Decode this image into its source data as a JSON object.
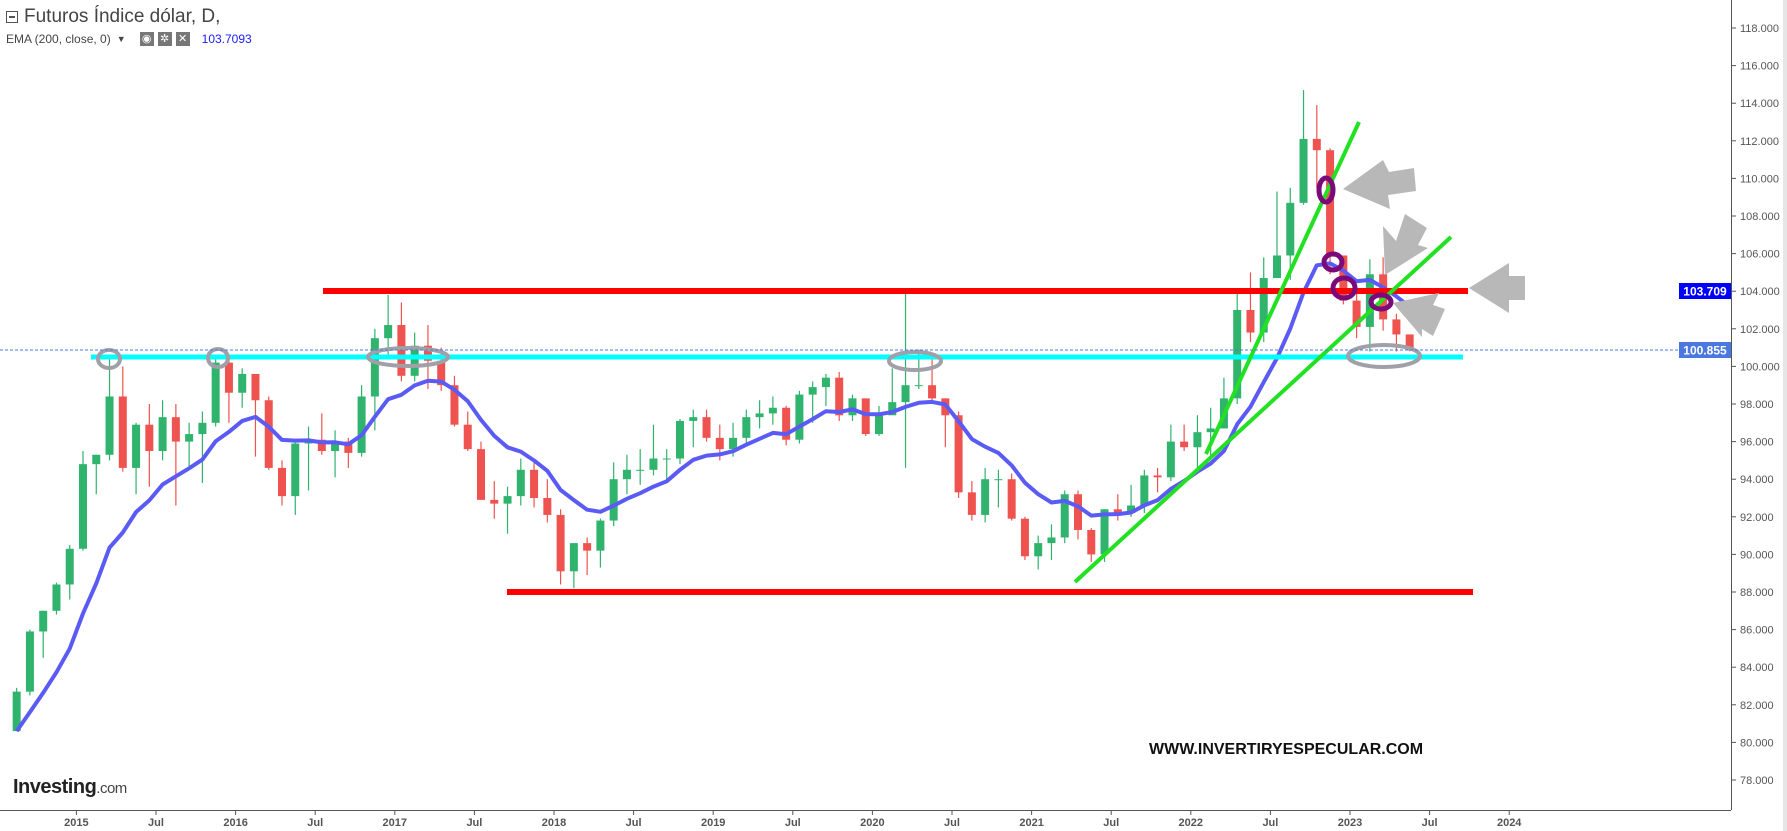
{
  "header": {
    "title": "Futuros Índice dólar, D,",
    "indicator_label": "EMA (200, close, 0)",
    "indicator_value": "103.7093",
    "icons": [
      "eye-icon",
      "gear-icon",
      "close-icon"
    ]
  },
  "watermark": "WWW.INVERTIRYESPECULAR.COM",
  "logo": {
    "main": "Investing",
    "suffix": ".com"
  },
  "colors": {
    "up": "#2fb36d",
    "down": "#ef5350",
    "ema": "#5a5af5",
    "resistance": "#ff0000",
    "support": "#00ffff",
    "trend": "#22e022",
    "marker_gray": "#a0a0a8",
    "marker_purple": "#7a0a7a",
    "last_price_badge": "#4a78e0",
    "ema_badge": "#0000ff"
  },
  "chart_data": {
    "type": "candlestick",
    "interval_shown": "D",
    "ylim": [
      77,
      119
    ],
    "yticks": [
      "78.000",
      "80.000",
      "82.000",
      "84.000",
      "86.000",
      "88.000",
      "90.000",
      "92.000",
      "94.000",
      "96.000",
      "98.000",
      "100.000",
      "102.000",
      "104.000",
      "106.000",
      "108.000",
      "110.000",
      "112.000",
      "114.000",
      "116.000",
      "118.000"
    ],
    "xticks": [
      {
        "label": "2015",
        "date": "2015-01"
      },
      {
        "label": "Jul",
        "date": "2015-07"
      },
      {
        "label": "2016",
        "date": "2016-01"
      },
      {
        "label": "Jul",
        "date": "2016-07"
      },
      {
        "label": "2017",
        "date": "2017-01"
      },
      {
        "label": "Jul",
        "date": "2017-07"
      },
      {
        "label": "2018",
        "date": "2018-01"
      },
      {
        "label": "Jul",
        "date": "2018-07"
      },
      {
        "label": "2019",
        "date": "2019-01"
      },
      {
        "label": "Jul",
        "date": "2019-07"
      },
      {
        "label": "2020",
        "date": "2020-01"
      },
      {
        "label": "Jul",
        "date": "2020-07"
      },
      {
        "label": "2021",
        "date": "2021-01"
      },
      {
        "label": "Jul",
        "date": "2021-07"
      },
      {
        "label": "2022",
        "date": "2022-01"
      },
      {
        "label": "Jul",
        "date": "2022-07"
      },
      {
        "label": "2023",
        "date": "2023-01"
      },
      {
        "label": "Jul",
        "date": "2023-07"
      },
      {
        "label": "2024",
        "date": "2024-01"
      }
    ],
    "start": "2014-08",
    "start_open": 80.6,
    "ohlc_close_high_low": [
      [
        82.7,
        82.9,
        80.6
      ],
      [
        85.9,
        86.0,
        82.5
      ],
      [
        87.0,
        87.0,
        84.5
      ],
      [
        88.4,
        88.5,
        86.8
      ],
      [
        90.3,
        90.5,
        87.6
      ],
      [
        94.8,
        95.5,
        90.2
      ],
      [
        95.3,
        95.3,
        93.2
      ],
      [
        98.4,
        100.4,
        95.0
      ],
      [
        94.6,
        100.0,
        94.4
      ],
      [
        96.9,
        97.0,
        93.2
      ],
      [
        95.5,
        98.0,
        93.6
      ],
      [
        97.3,
        98.2,
        95.0
      ],
      [
        96.0,
        98.0,
        92.6
      ],
      [
        96.4,
        97.0,
        94.7
      ],
      [
        97.0,
        97.6,
        93.8
      ],
      [
        100.2,
        100.6,
        96.8
      ],
      [
        98.6,
        100.3,
        97.0
      ],
      [
        99.6,
        99.9,
        97.8
      ],
      [
        98.2,
        99.5,
        95.2
      ],
      [
        94.6,
        98.4,
        94.5
      ],
      [
        93.1,
        95.0,
        92.6
      ],
      [
        95.9,
        96.0,
        92.1
      ],
      [
        96.1,
        96.8,
        93.4
      ],
      [
        95.5,
        97.5,
        95.3
      ],
      [
        96.0,
        96.6,
        94.1
      ],
      [
        95.4,
        96.2,
        94.6
      ],
      [
        98.4,
        99.0,
        95.2
      ],
      [
        101.5,
        102.0,
        96.6
      ],
      [
        102.2,
        103.8,
        100.6
      ],
      [
        99.5,
        103.4,
        99.2
      ],
      [
        101.1,
        101.8,
        99.2
      ],
      [
        100.3,
        102.2,
        98.8
      ],
      [
        99.0,
        101.0,
        98.7
      ],
      [
        96.9,
        99.5,
        96.8
      ],
      [
        95.6,
        97.6,
        95.5
      ],
      [
        92.9,
        96.0,
        92.9
      ],
      [
        92.7,
        93.9,
        91.9
      ],
      [
        93.1,
        93.6,
        91.1
      ],
      [
        94.5,
        95.1,
        92.6
      ],
      [
        93.0,
        95.0,
        92.5
      ],
      [
        92.1,
        94.0,
        91.7
      ],
      [
        89.1,
        92.4,
        88.4
      ],
      [
        90.6,
        90.6,
        88.2
      ],
      [
        90.2,
        90.9,
        88.9
      ],
      [
        91.8,
        91.9,
        89.3
      ],
      [
        94.0,
        94.9,
        91.5
      ],
      [
        94.5,
        95.3,
        93.2
      ],
      [
        94.5,
        95.6,
        93.7
      ],
      [
        95.1,
        96.9,
        94.2
      ],
      [
        95.1,
        95.6,
        93.8
      ],
      [
        97.1,
        97.2,
        94.8
      ],
      [
        97.3,
        97.7,
        95.7
      ],
      [
        96.2,
        97.7,
        96.0
      ],
      [
        95.6,
        96.9,
        95.0
      ],
      [
        96.2,
        97.0,
        95.2
      ],
      [
        97.3,
        97.7,
        95.8
      ],
      [
        97.5,
        98.2,
        96.7
      ],
      [
        97.8,
        98.4,
        96.9
      ],
      [
        96.1,
        97.9,
        95.8
      ],
      [
        98.5,
        98.7,
        95.9
      ],
      [
        98.9,
        99.2,
        97.0
      ],
      [
        99.4,
        99.6,
        97.9
      ],
      [
        97.4,
        99.7,
        97.1
      ],
      [
        98.3,
        98.5,
        97.1
      ],
      [
        96.4,
        98.2,
        96.3
      ],
      [
        97.4,
        97.9,
        96.3
      ],
      [
        98.1,
        99.9,
        97.6
      ],
      [
        99.0,
        103.9,
        94.6
      ],
      [
        99.0,
        100.9,
        98.8
      ],
      [
        98.3,
        100.4,
        98.0
      ],
      [
        97.4,
        98.3,
        95.7
      ],
      [
        93.3,
        97.6,
        93.0
      ],
      [
        92.1,
        93.9,
        91.8
      ],
      [
        94.0,
        94.6,
        91.7
      ],
      [
        94.0,
        94.5,
        92.5
      ],
      [
        91.9,
        94.3,
        91.8
      ],
      [
        89.9,
        92.0,
        89.7
      ],
      [
        90.6,
        91.0,
        89.2
      ],
      [
        90.9,
        91.6,
        89.7
      ],
      [
        93.2,
        93.4,
        90.6
      ],
      [
        91.3,
        93.4,
        90.8
      ],
      [
        90.0,
        91.4,
        89.6
      ],
      [
        92.4,
        92.4,
        89.6
      ],
      [
        92.2,
        93.2,
        91.8
      ],
      [
        92.6,
        93.7,
        92.0
      ],
      [
        94.2,
        94.5,
        92.2
      ],
      [
        94.1,
        94.6,
        93.3
      ],
      [
        96.0,
        96.9,
        93.9
      ],
      [
        95.7,
        96.9,
        95.5
      ],
      [
        96.5,
        97.4,
        94.6
      ],
      [
        96.7,
        97.8,
        95.1
      ],
      [
        98.3,
        99.4,
        96.7
      ],
      [
        103.0,
        103.9,
        98.0
      ],
      [
        101.8,
        105.0,
        101.3
      ],
      [
        104.7,
        105.8,
        101.3
      ],
      [
        105.9,
        109.3,
        104.8
      ],
      [
        108.7,
        109.5,
        104.6
      ],
      [
        112.1,
        114.7,
        108.6
      ],
      [
        111.5,
        113.9,
        109.5
      ],
      [
        105.9,
        111.6,
        104.9
      ],
      [
        103.5,
        105.8,
        103.3
      ],
      [
        102.1,
        104.1,
        101.5
      ],
      [
        104.9,
        105.7,
        100.8
      ],
      [
        102.5,
        105.8,
        101.9
      ],
      [
        101.7,
        102.8,
        100.8
      ],
      [
        100.855,
        101.7,
        100.8
      ]
    ],
    "ema_period": 200,
    "last_price": "100.855",
    "ema_last": "103.709",
    "levels": [
      {
        "kind": "resistance",
        "price": 104.0
      },
      {
        "kind": "support",
        "price": 100.5
      },
      {
        "kind": "support-low",
        "price": 88.0
      }
    ]
  }
}
